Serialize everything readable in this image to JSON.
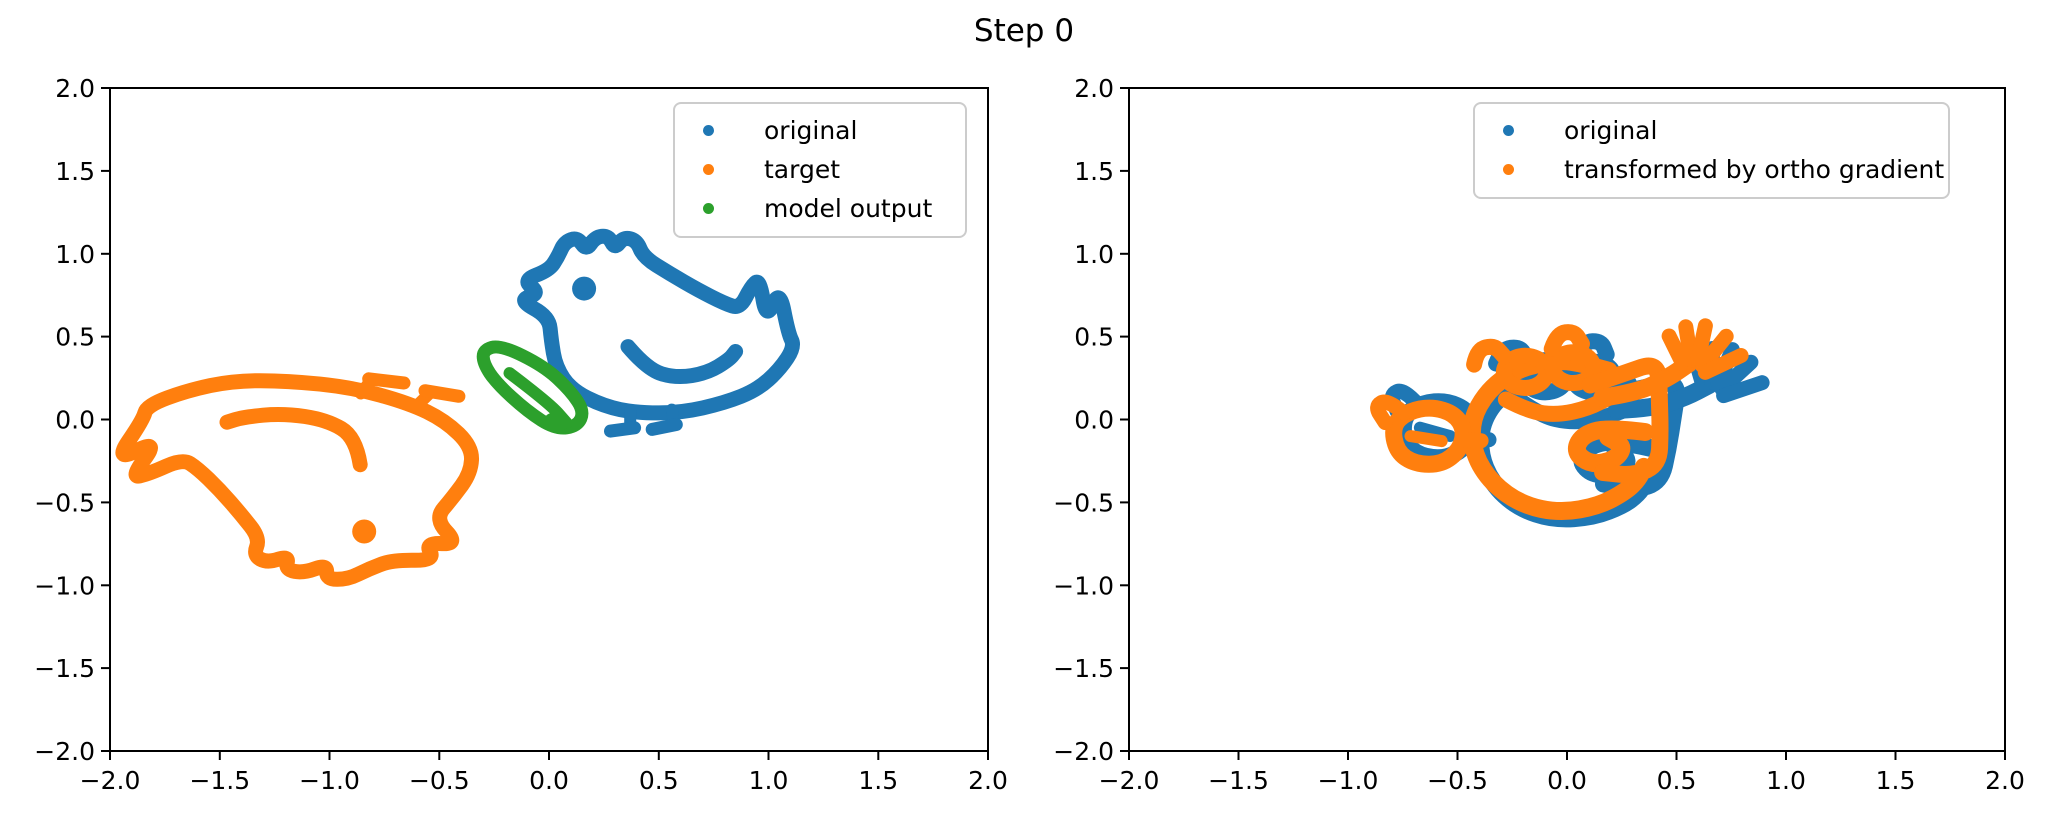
{
  "title": "Step 0",
  "chart_data": {
    "type": "scatter",
    "suptitle": "Step 0",
    "marker_style": "dense point-cloud strokes forming doodle line drawings",
    "palette": {
      "blue": "#1f77b4",
      "orange": "#ff7f0e",
      "green": "#2ca02c"
    },
    "grid": false,
    "subplots": [
      {
        "name": "left",
        "xlim": [
          -2.0,
          2.0
        ],
        "ylim": [
          -2.0,
          2.0
        ],
        "xticks": [
          -2.0,
          -1.5,
          -1.0,
          -0.5,
          0.0,
          0.5,
          1.0,
          1.5,
          2.0
        ],
        "xticklabels": [
          "−2.0",
          "−1.5",
          "−1.0",
          "−0.5",
          "0.0",
          "0.5",
          "1.0",
          "1.5",
          "2.0"
        ],
        "yticks": [
          -2.0,
          -1.5,
          -1.0,
          -0.5,
          0.0,
          0.5,
          1.0,
          1.5,
          2.0
        ],
        "yticklabels": [
          "−2.0",
          "−1.5",
          "−1.0",
          "−0.5",
          "0.0",
          "0.5",
          "1.0",
          "1.5",
          "2.0"
        ],
        "legend": {
          "loc": "upper right",
          "entries": [
            {
              "label": "original",
              "color": "#1f77b4"
            },
            {
              "label": "target",
              "color": "#ff7f0e"
            },
            {
              "label": "model output",
              "color": "#2ca02c"
            }
          ]
        },
        "series": [
          {
            "name": "original",
            "color": "#1f77b4",
            "glyph": "chicken",
            "transform": {
              "rotate": 0,
              "scale": [
                1,
                1
              ],
              "translate": [
                0.5,
                0.5
              ]
            },
            "approx_extent": {
              "x": [
                -0.15,
                1.14
              ],
              "y": [
                -0.1,
                1.12
              ]
            }
          },
          {
            "name": "target",
            "color": "#ff7f0e",
            "glyph": "chicken",
            "transform": {
              "rotate": 152,
              "scale": [
                1.45,
                1.0
              ],
              "translate": [
                -1.08,
                -0.26
              ]
            },
            "approx_extent": {
              "x": [
                -2.0,
                -0.15
              ],
              "y": [
                -1.0,
                0.45
              ]
            }
          },
          {
            "name": "model output",
            "color": "#2ca02c",
            "glyph": "pod",
            "transform": {
              "rotate": 0,
              "scale": [
                1,
                1
              ],
              "translate": [
                -0.07,
                0.19
              ]
            },
            "approx_extent": {
              "x": [
                -0.31,
                0.17
              ],
              "y": [
                -0.07,
                0.45
              ]
            }
          }
        ]
      },
      {
        "name": "right",
        "xlim": [
          -2.0,
          2.0
        ],
        "ylim": [
          -2.0,
          2.0
        ],
        "xticks": [
          -2.0,
          -1.5,
          -1.0,
          -0.5,
          0.0,
          0.5,
          1.0,
          1.5,
          2.0
        ],
        "xticklabels": [
          "−2.0",
          "−1.5",
          "−1.0",
          "−0.5",
          "0.0",
          "0.5",
          "1.0",
          "1.5",
          "2.0"
        ],
        "yticks": [
          -2.0,
          -1.5,
          -1.0,
          -0.5,
          0.0,
          0.5,
          1.0,
          1.5,
          2.0
        ],
        "yticklabels": [
          "−2.0",
          "−1.5",
          "−1.0",
          "−0.5",
          "0.0",
          "0.5",
          "1.0",
          "1.5",
          "2.0"
        ],
        "legend": {
          "loc": "upper right",
          "entries": [
            {
              "label": "original",
              "color": "#1f77b4"
            },
            {
              "label": "transformed by ortho gradient",
              "color": "#ff7f0e"
            }
          ]
        },
        "series": [
          {
            "name": "original",
            "color": "#1f77b4",
            "glyph": "gface",
            "transform": {
              "rotate": -4,
              "scale": [
                1,
                1
              ],
              "translate": [
                0.05,
                -0.05
              ]
            },
            "approx_extent": {
              "x": [
                -0.85,
                0.9
              ],
              "y": [
                -0.6,
                0.55
              ]
            }
          },
          {
            "name": "transformed by ortho gradient",
            "color": "#ff7f0e",
            "glyph": "gface",
            "transform": {
              "rotate": 4,
              "scale": [
                1,
                1
              ],
              "translate": [
                0.0,
                0.0
              ]
            },
            "approx_extent": {
              "x": [
                -0.88,
                0.85
              ],
              "y": [
                -0.57,
                0.57
              ]
            }
          }
        ]
      }
    ],
    "glyphs": {
      "chicken": [
        {
          "pts": [
            [
              -0.5,
              0.12
            ],
            [
              -0.64,
              0.22
            ],
            [
              -0.54,
              0.26
            ],
            [
              -0.62,
              0.34
            ],
            [
              -0.5,
              0.4
            ],
            [
              -0.46,
              0.48
            ],
            [
              -0.43,
              0.57
            ],
            [
              -0.37,
              0.6
            ],
            [
              -0.33,
              0.52
            ],
            [
              -0.29,
              0.6
            ],
            [
              -0.23,
              0.61
            ],
            [
              -0.2,
              0.53
            ],
            [
              -0.16,
              0.6
            ],
            [
              -0.1,
              0.58
            ],
            [
              -0.07,
              0.48
            ],
            [
              0.05,
              0.38
            ],
            [
              0.18,
              0.28
            ],
            [
              0.3,
              0.2
            ],
            [
              0.37,
              0.17
            ],
            [
              0.42,
              0.3
            ],
            [
              0.46,
              0.35
            ],
            [
              0.49,
              0.1
            ],
            [
              0.55,
              0.29
            ],
            [
              0.59,
              0.02
            ],
            [
              0.62,
              -0.06
            ],
            [
              0.55,
              -0.2
            ],
            [
              0.45,
              -0.32
            ],
            [
              0.3,
              -0.4
            ],
            [
              0.1,
              -0.46
            ],
            [
              -0.1,
              -0.46
            ],
            [
              -0.25,
              -0.42
            ],
            [
              -0.4,
              -0.32
            ],
            [
              -0.47,
              -0.18
            ],
            [
              -0.49,
              -0.02
            ]
          ],
          "closed": true,
          "w": 15
        },
        {
          "pts": [
            [
              -0.14,
              -0.06
            ],
            [
              -0.05,
              -0.2
            ],
            [
              0.08,
              -0.25
            ],
            [
              0.22,
              -0.22
            ],
            [
              0.32,
              -0.14
            ],
            [
              0.35,
              -0.09
            ]
          ],
          "closed": false,
          "w": 15
        },
        {
          "dot": [
            -0.34,
            0.29
          ],
          "r": 12
        },
        {
          "pts": [
            [
              -0.13,
              -0.45
            ],
            [
              -0.13,
              -0.54
            ]
          ],
          "closed": false,
          "w": 12
        },
        {
          "pts": [
            [
              -0.22,
              -0.57
            ],
            [
              -0.11,
              -0.55
            ]
          ],
          "closed": false,
          "w": 13
        },
        {
          "pts": [
            [
              0.06,
              -0.44
            ],
            [
              0.07,
              -0.53
            ]
          ],
          "closed": false,
          "w": 12
        },
        {
          "pts": [
            [
              -0.03,
              -0.56
            ],
            [
              0.08,
              -0.53
            ]
          ],
          "closed": false,
          "w": 13
        }
      ],
      "pod": [
        {
          "pts": [
            [
              -0.23,
              0.23
            ],
            [
              -0.15,
              0.26
            ],
            [
              0.05,
              0.13
            ],
            [
              0.17,
              -0.02
            ],
            [
              0.23,
              -0.14
            ],
            [
              0.2,
              -0.23
            ],
            [
              0.1,
              -0.25
            ],
            [
              -0.03,
              -0.14
            ],
            [
              -0.17,
              0.03
            ],
            [
              -0.23,
              0.15
            ]
          ],
          "closed": true,
          "w": 13
        },
        {
          "pts": [
            [
              -0.11,
              0.09
            ],
            [
              0.07,
              -0.09
            ],
            [
              0.15,
              -0.21
            ]
          ],
          "closed": false,
          "w": 12
        },
        {
          "pts": [
            [
              0.09,
              -0.17
            ],
            [
              0.15,
              -0.21
            ],
            [
              0.11,
              -0.24
            ],
            [
              0.06,
              -0.2
            ]
          ],
          "closed": true,
          "w": 10
        }
      ],
      "gface": [
        {
          "pts": [
            [
              0.21,
              0.28
            ],
            [
              0.08,
              0.34
            ],
            [
              -0.03,
              0.36
            ],
            [
              -0.21,
              0.32
            ],
            [
              -0.35,
              0.2
            ],
            [
              -0.44,
              0.02
            ],
            [
              -0.44,
              -0.18
            ],
            [
              -0.37,
              -0.36
            ],
            [
              -0.24,
              -0.5
            ],
            [
              -0.07,
              -0.56
            ],
            [
              0.11,
              -0.53
            ],
            [
              0.24,
              -0.45
            ],
            [
              0.3,
              -0.38
            ],
            [
              0.33,
              -0.31
            ]
          ],
          "closed": false,
          "w": 18
        },
        {
          "pts": [
            [
              0.35,
              -0.1
            ],
            [
              0.18,
              -0.06
            ],
            [
              0.06,
              -0.1
            ],
            [
              0.02,
              -0.2
            ],
            [
              0.09,
              -0.28
            ],
            [
              0.2,
              -0.26
            ],
            [
              0.25,
              -0.18
            ],
            [
              0.18,
              -0.12
            ]
          ],
          "closed": false,
          "w": 18
        },
        {
          "pts": [
            [
              -0.065,
              0.3
            ],
            [
              -0.096,
              0.374
            ],
            [
              -0.17,
              0.405
            ],
            [
              -0.244,
              0.374
            ],
            [
              -0.275,
              0.3
            ],
            [
              -0.244,
              0.226
            ],
            [
              -0.17,
              0.195
            ],
            [
              -0.096,
              0.226
            ]
          ],
          "closed": true,
          "w": 16
        },
        {
          "pts": [
            [
              0.15,
              0.31
            ],
            [
              0.121,
              0.381
            ],
            [
              0.05,
              0.41
            ],
            [
              -0.021,
              0.381
            ],
            [
              -0.05,
              0.31
            ],
            [
              -0.021,
              0.239
            ],
            [
              0.05,
              0.21
            ],
            [
              0.121,
              0.239
            ]
          ],
          "closed": true,
          "w": 16
        },
        {
          "pts": [
            [
              -0.27,
              0.14
            ],
            [
              -0.17,
              0.06
            ],
            [
              -0.04,
              0.03
            ],
            [
              0.1,
              0.06
            ],
            [
              0.22,
              0.13
            ]
          ],
          "closed": false,
          "w": 16
        },
        {
          "pts": [
            [
              -0.4,
              0.36
            ],
            [
              -0.38,
              0.45
            ],
            [
              -0.3,
              0.47
            ],
            [
              -0.26,
              0.4
            ]
          ],
          "closed": false,
          "w": 16
        },
        {
          "pts": [
            [
              -0.04,
              0.43
            ],
            [
              -0.01,
              0.52
            ],
            [
              0.07,
              0.53
            ],
            [
              0.1,
              0.45
            ]
          ],
          "closed": false,
          "w": 16
        },
        {
          "pts": [
            [
              0.12,
              0.2
            ],
            [
              0.28,
              0.26
            ],
            [
              0.44,
              0.32
            ],
            [
              0.43,
              0.1
            ],
            [
              0.42,
              -0.1
            ],
            [
              0.4,
              -0.3
            ],
            [
              0.28,
              -0.36
            ],
            [
              0.14,
              -0.33
            ]
          ],
          "closed": false,
          "w": 17
        },
        {
          "pts": [
            [
              0.17,
              0.12
            ],
            [
              0.33,
              0.14
            ],
            [
              0.48,
              0.22
            ],
            [
              0.58,
              0.3
            ]
          ],
          "closed": false,
          "w": 18
        },
        {
          "pts": [
            [
              0.55,
              0.3
            ],
            [
              0.5,
              0.47
            ]
          ],
          "closed": false,
          "w": 15
        },
        {
          "pts": [
            [
              0.59,
              0.32
            ],
            [
              0.58,
              0.52
            ]
          ],
          "closed": false,
          "w": 15
        },
        {
          "pts": [
            [
              0.62,
              0.31
            ],
            [
              0.67,
              0.52
            ]
          ],
          "closed": false,
          "w": 15
        },
        {
          "pts": [
            [
              0.64,
              0.28
            ],
            [
              0.76,
              0.45
            ]
          ],
          "closed": false,
          "w": 15
        },
        {
          "pts": [
            [
              0.65,
              0.24
            ],
            [
              0.82,
              0.33
            ]
          ],
          "closed": false,
          "w": 15
        },
        {
          "pts": [
            [
              -0.8,
              0.02
            ],
            [
              -0.72,
              0.1
            ],
            [
              -0.61,
              0.12
            ],
            [
              -0.51,
              0.07
            ],
            [
              -0.47,
              -0.03
            ],
            [
              -0.5,
              -0.15
            ],
            [
              -0.59,
              -0.23
            ],
            [
              -0.71,
              -0.22
            ],
            [
              -0.79,
              -0.14
            ]
          ],
          "closed": true,
          "w": 17
        },
        {
          "pts": [
            [
              -0.74,
              0.09
            ],
            [
              -0.81,
              0.18
            ],
            [
              -0.87,
              0.14
            ],
            [
              -0.83,
              0.04
            ]
          ],
          "closed": false,
          "w": 15
        },
        {
          "pts": [
            [
              -0.72,
              -0.05
            ],
            [
              -0.58,
              -0.09
            ]
          ],
          "closed": false,
          "w": 12
        },
        {
          "pts": [
            [
              -0.48,
              -0.09
            ],
            [
              -0.4,
              -0.1
            ]
          ],
          "closed": false,
          "w": 15
        }
      ]
    }
  }
}
